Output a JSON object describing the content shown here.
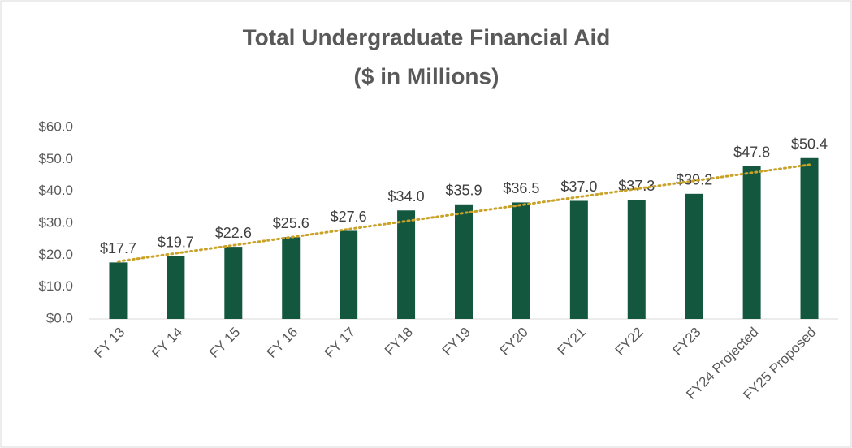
{
  "chart_data": {
    "type": "bar",
    "title": "Total Undergraduate Financial Aid",
    "subtitle": "($ in Millions)",
    "categories": [
      "FY 13",
      "FY 14",
      "FY 15",
      "FY 16",
      "FY 17",
      "FY18",
      "FY19",
      "FY20",
      "FY21",
      "FY22",
      "FY23",
      "FY24 Projected",
      "FY25 Proposed"
    ],
    "values": [
      17.7,
      19.7,
      22.6,
      25.6,
      27.6,
      34.0,
      35.9,
      36.5,
      37.0,
      37.3,
      39.2,
      47.8,
      50.4
    ],
    "value_labels": [
      "$17.7",
      "$19.7",
      "$22.6",
      "$25.6",
      "$27.6",
      "$34.0",
      "$35.9",
      "$36.5",
      "$37.0",
      "$37.3",
      "$39.2",
      "$47.8",
      "$50.4"
    ],
    "color": "#13573f",
    "trendline": true,
    "trendline_color": "#c9a227",
    "ylim": [
      0,
      60
    ],
    "yticks": [
      {
        "value": 0,
        "label": "$0.0"
      },
      {
        "value": 10,
        "label": "$10.0"
      },
      {
        "value": 20,
        "label": "$20.0"
      },
      {
        "value": 30,
        "label": "$30.0"
      },
      {
        "value": 40,
        "label": "$40.0"
      },
      {
        "value": 50,
        "label": "$50.0"
      },
      {
        "value": 60,
        "label": "$60.0"
      }
    ],
    "grid": false
  }
}
